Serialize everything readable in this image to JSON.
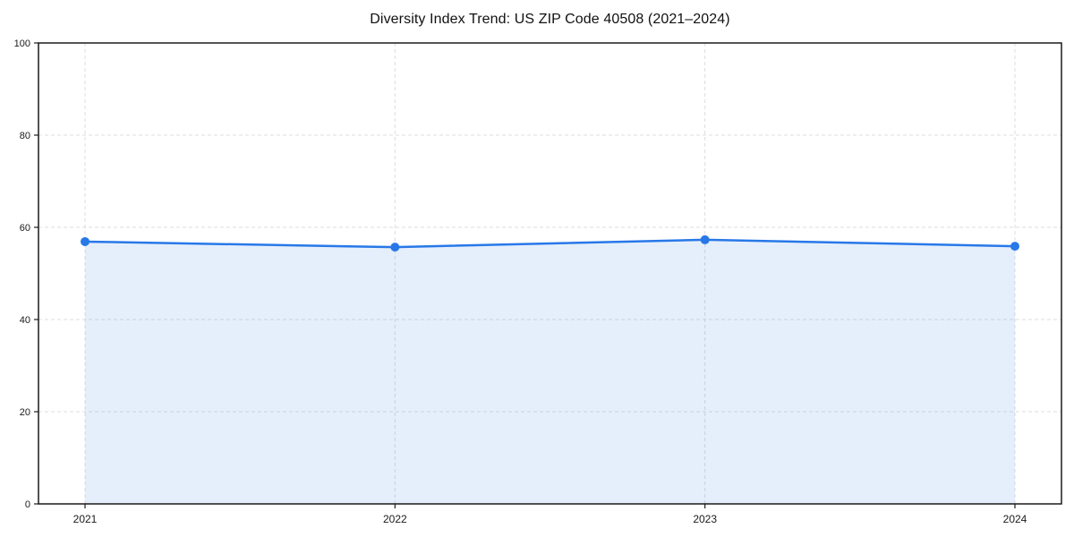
{
  "chart_data": {
    "type": "area",
    "title": "Diversity Index Trend: US ZIP Code 40508 (2021–2024)",
    "categories": [
      "2021",
      "2022",
      "2023",
      "2024"
    ],
    "series": [
      {
        "name": "Diversity Index",
        "values": [
          56.9,
          55.7,
          57.3,
          55.9
        ]
      }
    ],
    "xlabel": "",
    "ylabel": "",
    "ylim": [
      0,
      100
    ],
    "yticks": [
      0,
      20,
      40,
      60,
      80,
      100
    ],
    "grid": "both-dashed",
    "legend": "none",
    "colors": {
      "line": "#2878e8",
      "marker": "#2878e8",
      "fill": "#2878e8",
      "fill_opacity": 0.12,
      "grid": "#dcdcdc",
      "frame": "#1a1a1a",
      "tick_label": "#1a1a1a",
      "background": "#ffffff"
    }
  }
}
